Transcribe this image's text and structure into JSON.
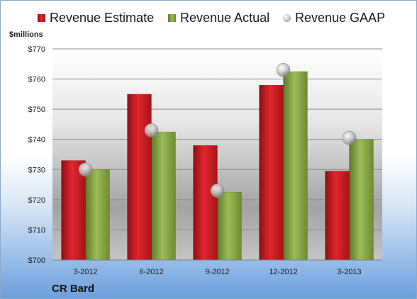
{
  "company": "CR Bard",
  "chart_data": {
    "type": "bar",
    "ylabel": "$millions",
    "categories": [
      "3-2012",
      "6-2012",
      "9-2012",
      "12-2012",
      "3-2013"
    ],
    "series": [
      {
        "name": "Revenue Estimate",
        "kind": "bar",
        "color": "#d9222a",
        "values": [
          733,
          755,
          738,
          758,
          729.5
        ]
      },
      {
        "name": "Revenue Actual",
        "kind": "bar",
        "color": "#8fb04a",
        "values": [
          730,
          742.5,
          722.5,
          762.5,
          740
        ]
      },
      {
        "name": "Revenue GAAP",
        "kind": "marker",
        "color": "#b5b5b5",
        "values": [
          730,
          743,
          723,
          763,
          740.5
        ]
      }
    ],
    "ylim": [
      700,
      770
    ],
    "yticks": [
      700,
      710,
      720,
      730,
      740,
      750,
      760,
      770
    ],
    "ytick_labels": [
      "$700",
      "$710",
      "$720",
      "$730",
      "$740",
      "$750",
      "$760",
      "$770"
    ],
    "grid": true,
    "legend_position": "top"
  }
}
